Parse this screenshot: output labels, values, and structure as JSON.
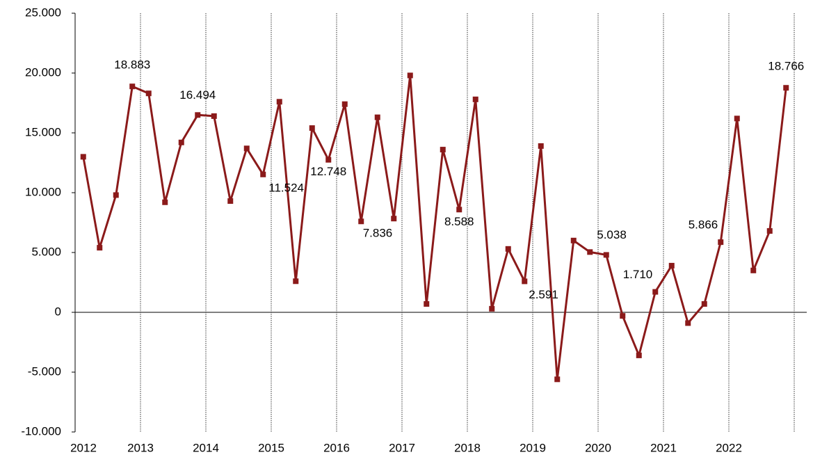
{
  "chart_data": {
    "type": "line",
    "categories": [
      "2012",
      null,
      null,
      null,
      "2013",
      null,
      null,
      null,
      "2014",
      null,
      null,
      null,
      "2015",
      null,
      null,
      null,
      "2016",
      null,
      null,
      null,
      "2017",
      null,
      null,
      null,
      "2018",
      null,
      null,
      null,
      "2019",
      null,
      null,
      null,
      "2020",
      null,
      null,
      null,
      "2021",
      null,
      null,
      null,
      "2022",
      null,
      null,
      null
    ],
    "series": [
      {
        "color": "#8b1a1a",
        "values": [
          13000,
          5400,
          9800,
          18883,
          18300,
          9200,
          14200,
          16494,
          16400,
          9300,
          13700,
          11524,
          17600,
          2600,
          15400,
          12748,
          17400,
          7600,
          16300,
          7836,
          19800,
          700,
          13600,
          8588,
          17800,
          300,
          5300,
          2591,
          13900,
          -5600,
          6000,
          5038,
          4800,
          -300,
          -3600,
          1710,
          3900,
          -900,
          700,
          5866,
          16200,
          3500,
          6800,
          18766
        ],
        "value_labels": [
          null,
          null,
          null,
          "18.883",
          null,
          null,
          null,
          "16.494",
          null,
          null,
          null,
          "11.524",
          null,
          null,
          null,
          "12.748",
          null,
          null,
          null,
          "7.836",
          null,
          null,
          null,
          "8.588",
          null,
          null,
          null,
          "2.591",
          null,
          null,
          null,
          "5.038",
          null,
          null,
          null,
          "1.710",
          null,
          null,
          null,
          "5.866",
          null,
          null,
          null,
          "18.766"
        ]
      }
    ],
    "ylim": [
      -10000,
      25000
    ],
    "yticks": [
      {
        "value": -10000,
        "label": "-10.000"
      },
      {
        "value": -5000,
        "label": "-5.000"
      },
      0,
      {
        "value": 5000,
        "label": "5.000"
      },
      {
        "value": 10000,
        "label": "10.000"
      },
      {
        "value": 15000,
        "label": "15.000"
      },
      {
        "value": 20000,
        "label": "20.000"
      },
      {
        "value": 25000,
        "label": "25.000"
      }
    ],
    "grid": true
  }
}
